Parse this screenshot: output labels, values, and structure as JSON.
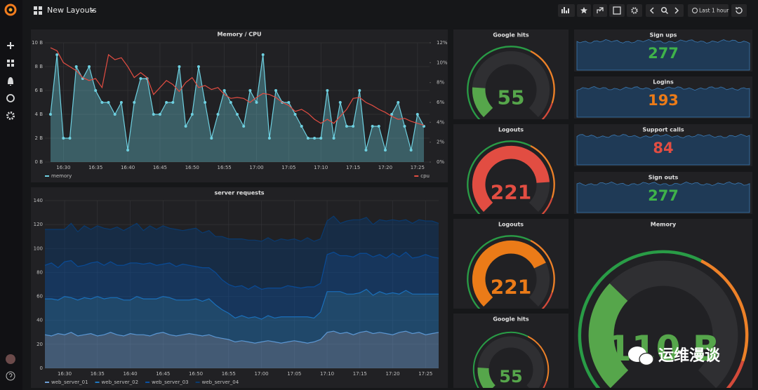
{
  "header": {
    "title": "New Layouts",
    "time_range": "Last 1 hour"
  },
  "chart_data": [
    {
      "type": "line",
      "title": "Memory / CPU",
      "categories": [
        null,
        null,
        "16:30",
        null,
        null,
        null,
        null,
        "16:35",
        null,
        null,
        null,
        null,
        "16:40",
        null,
        null,
        null,
        null,
        "16:45",
        null,
        null,
        null,
        null,
        "16:50",
        null,
        null,
        null,
        null,
        "16:55",
        null,
        null,
        null,
        null,
        "17:00",
        null,
        null,
        null,
        null,
        "17:05",
        null,
        null,
        null,
        null,
        "17:10",
        null,
        null,
        null,
        null,
        "17:15",
        null,
        null,
        null,
        null,
        "17:20",
        null,
        null,
        null,
        null,
        "17:25",
        null
      ],
      "series": [
        {
          "name": "memory",
          "color": "#6ed0e0",
          "fill": true,
          "points": true,
          "values": [
            4,
            9,
            2,
            2,
            8,
            7,
            8,
            6,
            5,
            5,
            4,
            5,
            1,
            5,
            7,
            7,
            4,
            4,
            5,
            5,
            8,
            3,
            4,
            8,
            5,
            2,
            4,
            6,
            5,
            4,
            3,
            6,
            5,
            9,
            2,
            6,
            5,
            5,
            4,
            3,
            2,
            2,
            2,
            6,
            2,
            5,
            3,
            3,
            6,
            1,
            3,
            3,
            1,
            4,
            5,
            3,
            1,
            4,
            3
          ]
        },
        {
          "name": "cpu",
          "color": "#e24d42",
          "axis": "y2",
          "values": [
            11.5,
            11.2,
            10,
            9.6,
            9.2,
            8.5,
            8.2,
            8.4,
            7.5,
            10.8,
            10.3,
            10.5,
            9.6,
            8.5,
            9,
            8.5,
            6.8,
            7.5,
            8.2,
            7.8,
            7.1,
            8,
            8.5,
            7.5,
            7.7,
            7.3,
            7.5,
            6.8,
            6.4,
            6.5,
            6.4,
            6,
            6.5,
            6.9,
            6.8,
            6.5,
            6,
            5.7,
            5.1,
            5.3,
            4.9,
            4.3,
            3.9,
            4.3,
            3.9,
            4.6,
            5.3,
            6.4,
            6.5,
            6,
            5.7,
            5.3,
            5,
            4.6,
            4.3,
            4.4,
            4.1,
            3.9,
            3.7
          ]
        }
      ],
      "ylim": [
        0,
        10
      ],
      "yticks": [
        {
          "value": 0,
          "label": "0 B"
        },
        {
          "value": 2,
          "label": "2 B"
        },
        {
          "value": 4,
          "label": "4 B"
        },
        {
          "value": 6,
          "label": "6 B"
        },
        {
          "value": 8,
          "label": "8 B"
        },
        {
          "value": 10,
          "label": "10 B"
        }
      ],
      "y2lim": [
        0,
        12
      ],
      "y2ticks": [
        {
          "value": 0,
          "label": "0%"
        },
        {
          "value": 2,
          "label": "2%"
        },
        {
          "value": 4,
          "label": "4%"
        },
        {
          "value": 6,
          "label": "6%"
        },
        {
          "value": 8,
          "label": "8%"
        },
        {
          "value": 10,
          "label": "10%"
        },
        {
          "value": 12,
          "label": "12%"
        }
      ],
      "grid": true
    },
    {
      "type": "area",
      "stacked": true,
      "title": "server requests",
      "categories": [
        null,
        null,
        null,
        "16:30",
        null,
        null,
        null,
        null,
        "16:35",
        null,
        null,
        null,
        null,
        "16:40",
        null,
        null,
        null,
        null,
        "16:45",
        null,
        null,
        null,
        null,
        "16:50",
        null,
        null,
        null,
        null,
        "16:55",
        null,
        null,
        null,
        null,
        "17:00",
        null,
        null,
        null,
        null,
        "17:05",
        null,
        null,
        null,
        null,
        "17:10",
        null,
        null,
        null,
        null,
        "17:15",
        null,
        null,
        null,
        null,
        "17:20",
        null,
        null,
        null,
        null,
        "17:25",
        null,
        null
      ],
      "series": [
        {
          "name": "web_server_01",
          "color": "#6d9fd6",
          "values": [
            28,
            27,
            29,
            28,
            30,
            27,
            28,
            29,
            27,
            28,
            30,
            28,
            27,
            29,
            28,
            28,
            27,
            29,
            30,
            28,
            27,
            28,
            29,
            28,
            27,
            28,
            26,
            25,
            24,
            22,
            23,
            22,
            21,
            22,
            23,
            22,
            21,
            22,
            23,
            22,
            21,
            22,
            24,
            30,
            31,
            29,
            30,
            28,
            30,
            31,
            29,
            30,
            29,
            28,
            30,
            31,
            29,
            30,
            28,
            29,
            30
          ]
        },
        {
          "name": "web_server_02",
          "color": "#1f78c1",
          "values": [
            30,
            31,
            28,
            32,
            29,
            30,
            31,
            29,
            33,
            30,
            29,
            31,
            30,
            28,
            32,
            30,
            31,
            29,
            30,
            31,
            30,
            29,
            28,
            30,
            29,
            30,
            27,
            24,
            22,
            20,
            21,
            20,
            22,
            19,
            21,
            20,
            22,
            21,
            20,
            21,
            22,
            20,
            23,
            34,
            33,
            35,
            32,
            34,
            33,
            35,
            32,
            34,
            33,
            35,
            32,
            34,
            33,
            32,
            34,
            33,
            32
          ]
        },
        {
          "name": "web_server_03",
          "color": "#0a50a1",
          "values": [
            28,
            30,
            27,
            29,
            31,
            28,
            27,
            30,
            29,
            28,
            30,
            27,
            29,
            31,
            28,
            29,
            30,
            28,
            27,
            29,
            28,
            30,
            29,
            27,
            28,
            26,
            27,
            25,
            24,
            26,
            25,
            24,
            26,
            25,
            23,
            25,
            24,
            26,
            25,
            24,
            25,
            26,
            24,
            31,
            33,
            30,
            32,
            31,
            33,
            30,
            32,
            31,
            30,
            33,
            31,
            32,
            30,
            31,
            33,
            31,
            30
          ]
        },
        {
          "name": "web_server_04",
          "color": "#0a3a6e",
          "values": [
            30,
            28,
            32,
            27,
            31,
            29,
            33,
            28,
            30,
            31,
            27,
            32,
            29,
            30,
            33,
            28,
            31,
            30,
            32,
            29,
            31,
            28,
            30,
            32,
            29,
            31,
            30,
            36,
            38,
            40,
            39,
            41,
            38,
            40,
            42,
            39,
            41,
            38,
            40,
            39,
            41,
            38,
            37,
            28,
            30,
            27,
            29,
            31,
            28,
            30,
            27,
            29,
            31,
            28,
            30,
            27,
            29,
            31,
            28,
            30,
            29
          ]
        }
      ],
      "ylim": [
        0,
        140
      ],
      "yticks": [
        0,
        20,
        40,
        60,
        80,
        100,
        120,
        140
      ],
      "grid": true
    }
  ],
  "gauges": [
    {
      "title": "Google hits",
      "value": 55,
      "color": "#56a64b"
    },
    {
      "title": "Logouts",
      "value": 221,
      "color": "#e24d42"
    },
    {
      "title": "Logouts",
      "value": 221,
      "color": "#eb7b18"
    },
    {
      "title": "Google hits",
      "value": 55,
      "color": "#56a64b"
    },
    {
      "title": "Memory",
      "value": 110,
      "value_label": "110 B",
      "color": "#56a64b"
    }
  ],
  "stats": [
    {
      "title": "Sign ups",
      "value": 277,
      "color": "#3fb24a"
    },
    {
      "title": "Logins",
      "value": 193,
      "color": "#eb7b18"
    },
    {
      "title": "Support calls",
      "value": 84,
      "color": "#e24d42"
    },
    {
      "title": "Sign outs",
      "value": 277,
      "color": "#3fb24a"
    }
  ],
  "watermark": "运维漫谈"
}
